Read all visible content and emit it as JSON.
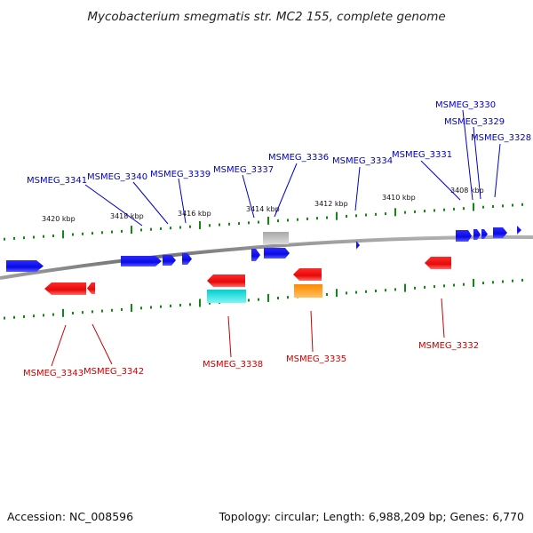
{
  "title": "Mycobacterium smegmatis str. MC2 155, complete genome",
  "footer": {
    "accession": "Accession: NC_008596",
    "topology": "Topology: circular; Length: 6,988,209 bp; Genes: 6,770"
  },
  "scale_labels": [
    "3420 kbp",
    "3418 kbp",
    "3416 kbp",
    "3414 kbp",
    "3412 kbp",
    "3410 kbp",
    "3408 kbp"
  ],
  "genes_forward": [
    "MSMEG_3341",
    "MSMEG_3340",
    "MSMEG_3339",
    "MSMEG_3337",
    "MSMEG_3336",
    "MSMEG_3334",
    "MSMEG_3331",
    "MSMEG_3330",
    "MSMEG_3329",
    "MSMEG_3328"
  ],
  "genes_reverse": [
    "MSMEG_3343",
    "MSMEG_3342",
    "MSMEG_3338",
    "MSMEG_3335",
    "MSMEG_3332"
  ],
  "colors": {
    "forward_cds": "#1010f0",
    "reverse_cds": "#ee1111",
    "rna_gray": "#b8b8b8",
    "rna_cyan": "#22dddd",
    "rna_orange": "#ff9900",
    "tick": "#118811",
    "backbone": "#888888",
    "label_forward": "#0000c8",
    "label_reverse": "#cc0000"
  }
}
